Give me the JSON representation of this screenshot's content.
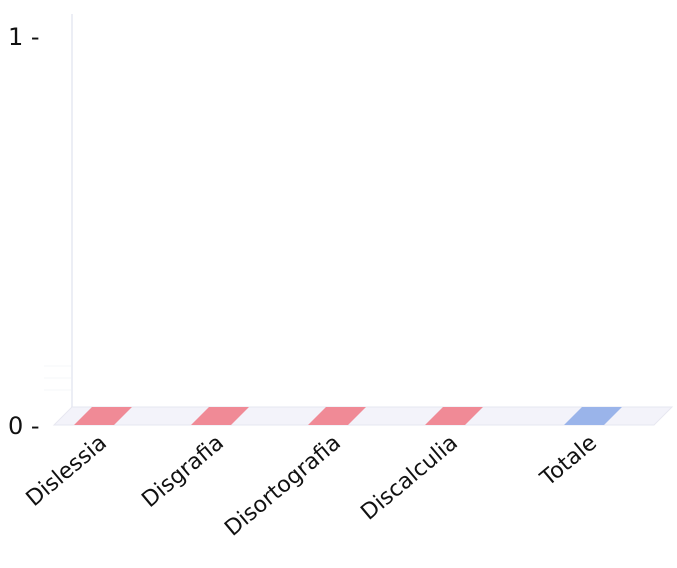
{
  "chart_data": {
    "type": "bar",
    "categories": [
      "Dislessia",
      "Disgrafia",
      "Disortografia",
      "Discalculia",
      "Totale"
    ],
    "values": [
      0,
      0,
      0,
      0,
      0
    ],
    "colors": [
      "#f08a96",
      "#f08a96",
      "#f08a96",
      "#f08a96",
      "#9ab4ea"
    ],
    "y_ticks": [
      {
        "value": 0,
        "label": "0 -"
      },
      {
        "value": 1,
        "label": "1 -"
      }
    ],
    "ylim": [
      0,
      1
    ],
    "grid": false,
    "style": "3d"
  }
}
